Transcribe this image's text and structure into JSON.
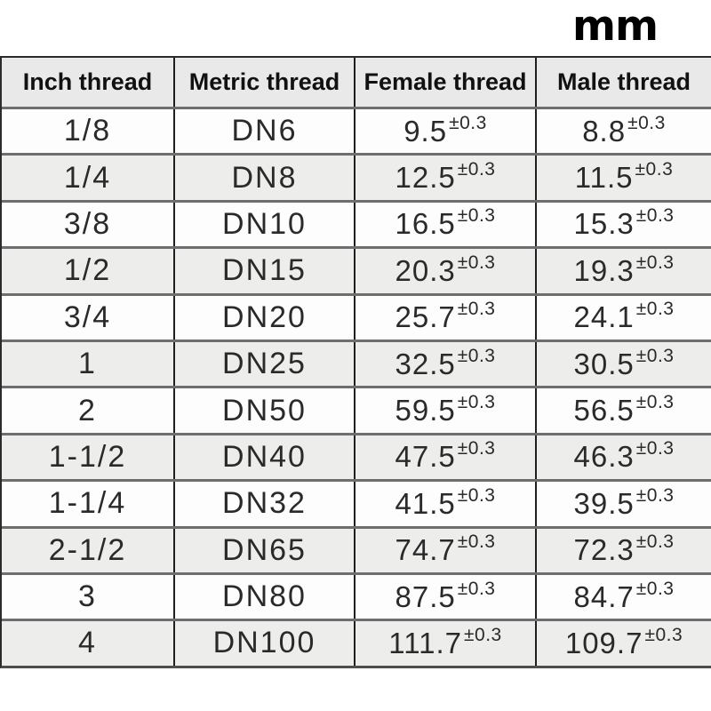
{
  "unit_label": "mm",
  "colors": {
    "header_bg": "#e9e9e9",
    "alt_row_bg": "#ededec",
    "vertical_border": "#1f1f1f",
    "row_border": "#6e6e6e",
    "text": "#2a2a2a"
  },
  "table": {
    "columns": [
      "Inch thread",
      "Metric thread",
      "Female thread",
      "Male thread"
    ],
    "rows": [
      {
        "inch": "1/8",
        "metric": "DN6",
        "female": "9.5",
        "female_tol": "±0.3",
        "male": "8.8",
        "male_tol": "±0.3"
      },
      {
        "inch": "1/4",
        "metric": "DN8",
        "female": "12.5",
        "female_tol": "±0.3",
        "male": "11.5",
        "male_tol": "±0.3"
      },
      {
        "inch": "3/8",
        "metric": "DN10",
        "female": "16.5",
        "female_tol": "±0.3",
        "male": "15.3",
        "male_tol": "±0.3"
      },
      {
        "inch": "1/2",
        "metric": "DN15",
        "female": "20.3",
        "female_tol": "±0.3",
        "male": "19.3",
        "male_tol": "±0.3"
      },
      {
        "inch": "3/4",
        "metric": "DN20",
        "female": "25.7",
        "female_tol": "±0.3",
        "male": "24.1",
        "male_tol": "±0.3"
      },
      {
        "inch": "1",
        "metric": "DN25",
        "female": "32.5",
        "female_tol": "±0.3",
        "male": "30.5",
        "male_tol": "±0.3"
      },
      {
        "inch": "2",
        "metric": "DN50",
        "female": "59.5",
        "female_tol": "±0.3",
        "male": "56.5",
        "male_tol": "±0.3"
      },
      {
        "inch": "1-1/2",
        "metric": "DN40",
        "female": "47.5",
        "female_tol": "±0.3",
        "male": "46.3",
        "male_tol": "±0.3"
      },
      {
        "inch": "1-1/4",
        "metric": "DN32",
        "female": "41.5",
        "female_tol": "±0.3",
        "male": "39.5",
        "male_tol": "±0.3"
      },
      {
        "inch": "2-1/2",
        "metric": "DN65",
        "female": "74.7",
        "female_tol": "±0.3",
        "male": "72.3",
        "male_tol": "±0.3"
      },
      {
        "inch": "3",
        "metric": "DN80",
        "female": "87.5",
        "female_tol": "±0.3",
        "male": "84.7",
        "male_tol": "±0.3"
      },
      {
        "inch": "4",
        "metric": "DN100",
        "female": "111.7",
        "female_tol": "±0.3",
        "male": "109.7",
        "male_tol": "±0.3"
      }
    ]
  }
}
